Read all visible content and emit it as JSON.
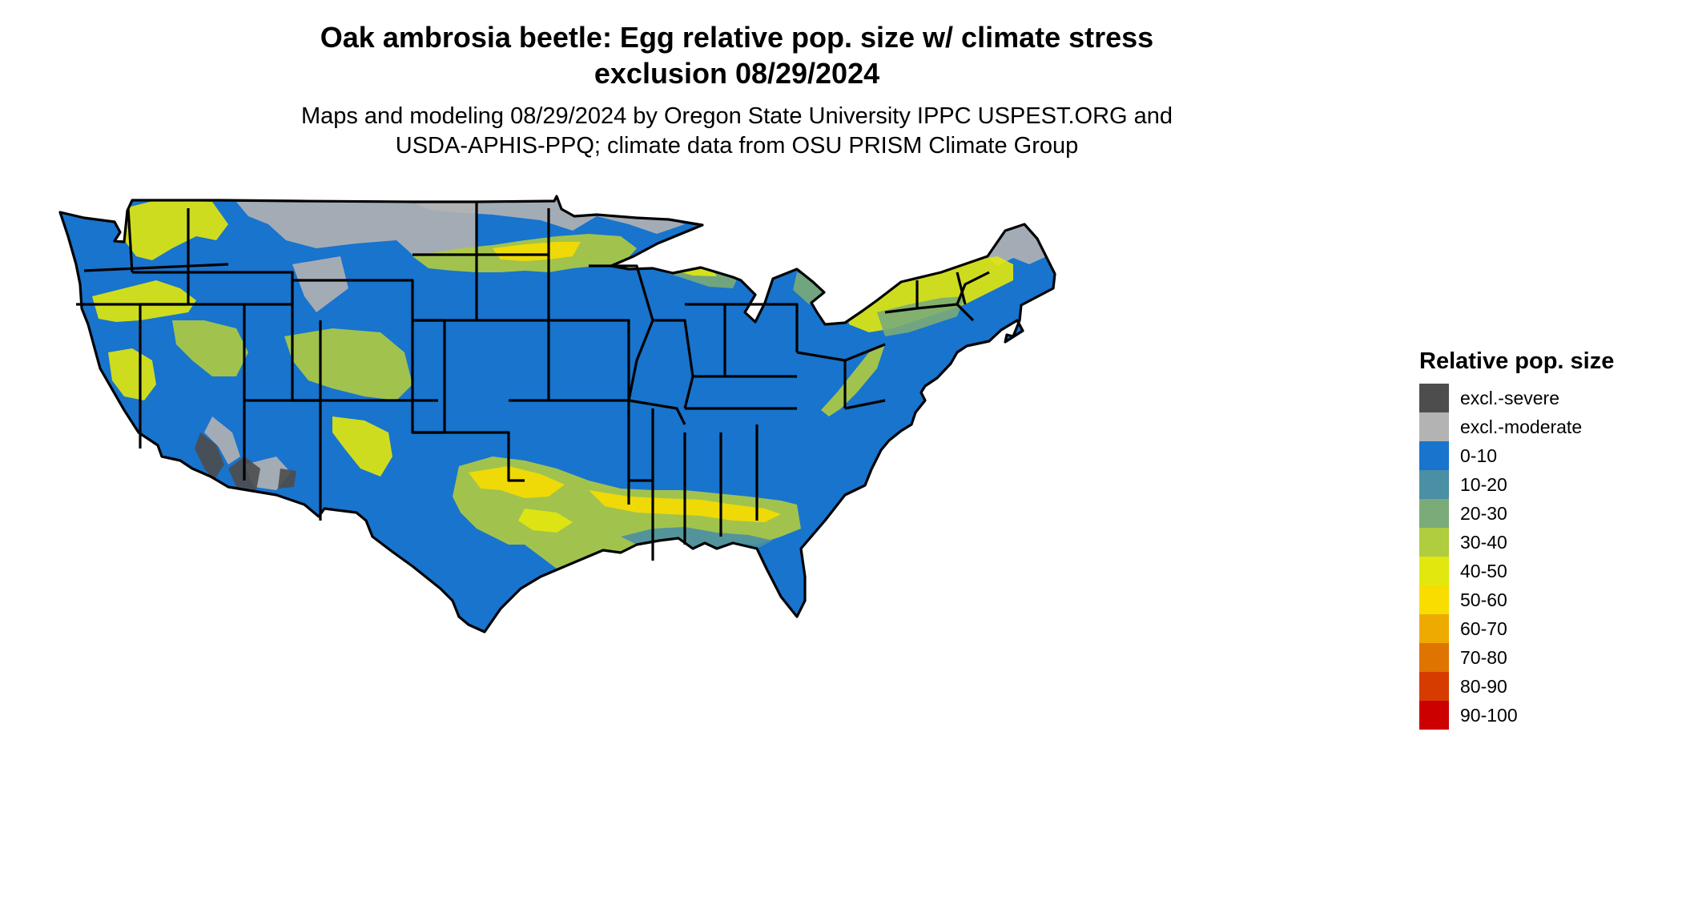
{
  "title": {
    "line1": "Oak ambrosia beetle: Egg relative pop. size w/ climate stress",
    "line2": "exclusion 08/29/2024"
  },
  "subtitle": {
    "line1": "Maps and modeling 08/29/2024 by Oregon State University IPPC USPEST.ORG and",
    "line2": "USDA-APHIS-PPQ; climate data from OSU PRISM Climate Group"
  },
  "legend": {
    "title": "Relative pop. size",
    "items": [
      {
        "label": "excl.-severe",
        "color": "#4d4d4d"
      },
      {
        "label": "excl.-moderate",
        "color": "#b3b3b3"
      },
      {
        "label": "0-10",
        "color": "#1874cd"
      },
      {
        "label": "10-20",
        "color": "#4a8fa3"
      },
      {
        "label": "20-30",
        "color": "#7aab78"
      },
      {
        "label": "30-40",
        "color": "#b0cc3f"
      },
      {
        "label": "40-50",
        "color": "#e2e80d"
      },
      {
        "label": "50-60",
        "color": "#f7dd00"
      },
      {
        "label": "60-70",
        "color": "#eeaa00"
      },
      {
        "label": "70-80",
        "color": "#e07400"
      },
      {
        "label": "80-90",
        "color": "#d63c00"
      },
      {
        "label": "90-100",
        "color": "#cd0000"
      }
    ]
  },
  "map": {
    "outline_color": "#000000",
    "base_class": "0-10"
  }
}
